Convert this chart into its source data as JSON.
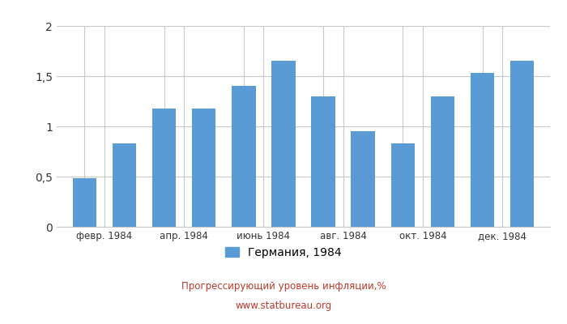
{
  "x_tick_labels": [
    "февр. 1984",
    "апр. 1984",
    "июнь 1984",
    "авг. 1984",
    "окт. 1984",
    "дек. 1984"
  ],
  "x_tick_positions": [
    1.5,
    3.5,
    5.5,
    7.5,
    9.5,
    11.5
  ],
  "values": [
    0.48,
    0.83,
    1.18,
    1.18,
    1.4,
    1.65,
    1.3,
    0.95,
    0.83,
    1.3,
    1.53,
    1.65
  ],
  "bar_color": "#5b9bd5",
  "ylim": [
    0,
    2
  ],
  "yticks": [
    0,
    0.5,
    1.0,
    1.5,
    2.0
  ],
  "ytick_labels": [
    "0",
    "0,5",
    "1",
    "1,5",
    "2"
  ],
  "legend_label": "Германия, 1984",
  "title_line1": "Прогрессирующий уровень инфляции,%",
  "title_line2": "www.statbureau.org",
  "title_color": "#c0392b",
  "background_color": "#ffffff",
  "grid_color": "#c8c8c8",
  "figwidth": 7.0,
  "figheight": 4.0
}
